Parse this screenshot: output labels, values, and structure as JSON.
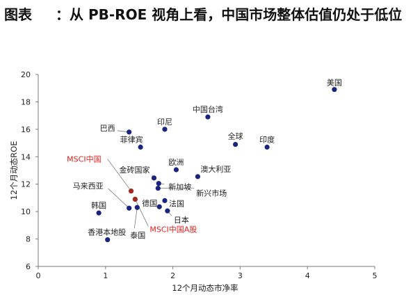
{
  "title": {
    "prefix": "图表",
    "main": "：从 PB-ROE 视角上看，中国市场整体估值仍处于低位"
  },
  "chart_data": {
    "type": "scatter",
    "xlabel": "12个月动态市净率",
    "ylabel": "12个月动态ROE",
    "xlim": [
      0,
      5
    ],
    "ylim": [
      6,
      20
    ],
    "xticks": [
      0,
      1,
      2,
      3,
      4,
      5
    ],
    "yticks": [
      6,
      8,
      10,
      12,
      14,
      16,
      18,
      20
    ],
    "grid": false,
    "legend": "none",
    "colors": {
      "default": "#1a237e",
      "highlight": "#a0281e",
      "highlight_label": "#e02020",
      "axis": "#7a7a7a",
      "leader": "#7a7a7a"
    },
    "points": [
      {
        "name": "美国",
        "x": 4.4,
        "y": 18.9,
        "highlight": false
      },
      {
        "name": "中国台湾",
        "x": 2.52,
        "y": 16.9,
        "highlight": false
      },
      {
        "name": "印尼",
        "x": 1.88,
        "y": 16.0,
        "highlight": false
      },
      {
        "name": "巴西",
        "x": 1.35,
        "y": 15.8,
        "highlight": false
      },
      {
        "name": "菲律宾",
        "x": 1.52,
        "y": 14.7,
        "highlight": false
      },
      {
        "name": "全球",
        "x": 2.93,
        "y": 14.9,
        "highlight": false
      },
      {
        "name": "印度",
        "x": 3.4,
        "y": 14.7,
        "highlight": false
      },
      {
        "name": "欧洲",
        "x": 2.05,
        "y": 13.05,
        "highlight": false
      },
      {
        "name": "澳大利亚",
        "x": 2.37,
        "y": 12.55,
        "highlight": false
      },
      {
        "name": "金砖国家",
        "x": 1.72,
        "y": 12.45,
        "highlight": false
      },
      {
        "name": "新加坡",
        "x": 1.79,
        "y": 12.05,
        "highlight": false
      },
      {
        "name": "新兴市场",
        "x": 1.78,
        "y": 11.7,
        "highlight": false
      },
      {
        "name": "MSCI中国",
        "x": 1.38,
        "y": 11.5,
        "highlight": true
      },
      {
        "name": "法国",
        "x": 1.88,
        "y": 10.8,
        "highlight": false
      },
      {
        "name": "MSCI中国A股",
        "x": 1.44,
        "y": 10.9,
        "highlight": true
      },
      {
        "name": "马来西亚",
        "x": 1.35,
        "y": 10.25,
        "highlight": false
      },
      {
        "name": "泰国",
        "x": 1.47,
        "y": 10.3,
        "highlight": false
      },
      {
        "name": "德国",
        "x": 1.8,
        "y": 10.35,
        "highlight": false
      },
      {
        "name": "日本",
        "x": 1.92,
        "y": 10.05,
        "highlight": false
      },
      {
        "name": "韩国",
        "x": 0.9,
        "y": 9.9,
        "highlight": false
      },
      {
        "name": "香港本地股",
        "x": 1.03,
        "y": 7.95,
        "highlight": false
      }
    ]
  }
}
